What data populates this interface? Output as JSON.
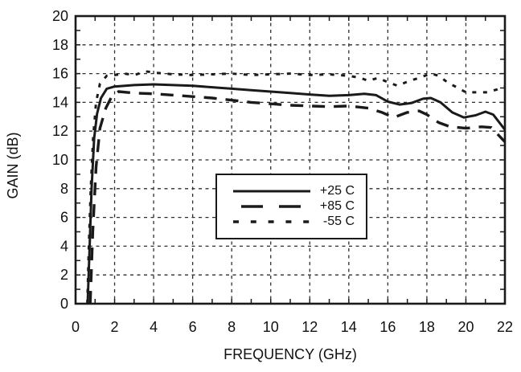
{
  "figure": {
    "background": "#ffffff",
    "ink_color": "#1a1a1a",
    "grid_color": "#2e2e2e"
  },
  "chart_data": {
    "type": "line",
    "title": "",
    "xlabel": "FREQUENCY (GHz)",
    "ylabel": "GAIN (dB)",
    "xlim": [
      0,
      22
    ],
    "ylim": [
      0,
      20
    ],
    "x_ticks": [
      0,
      2,
      4,
      6,
      8,
      10,
      12,
      14,
      16,
      18,
      20,
      22
    ],
    "y_ticks": [
      0,
      2,
      4,
      6,
      8,
      10,
      12,
      14,
      16,
      18,
      20
    ],
    "minor_tick_step": 1,
    "grid": {
      "style": "dashed",
      "x_lines": [
        2,
        4,
        6,
        8,
        10,
        12,
        14,
        16,
        18,
        20
      ],
      "y_lines": [
        2,
        4,
        6,
        8,
        10,
        12,
        14,
        16,
        18
      ]
    },
    "legend_position": "inside-bottom-center",
    "series": [
      {
        "name": "+25 C",
        "style": "solid",
        "points": [
          [
            0.62,
            0
          ],
          [
            0.72,
            4
          ],
          [
            0.82,
            8
          ],
          [
            0.95,
            11.5
          ],
          [
            1.1,
            13.2
          ],
          [
            1.3,
            14.3
          ],
          [
            1.6,
            14.95
          ],
          [
            2,
            15.1
          ],
          [
            3,
            15.2
          ],
          [
            4,
            15.25
          ],
          [
            5,
            15.2
          ],
          [
            6,
            15.15
          ],
          [
            7,
            15.05
          ],
          [
            8,
            14.95
          ],
          [
            9,
            14.85
          ],
          [
            10,
            14.75
          ],
          [
            11,
            14.65
          ],
          [
            12,
            14.55
          ],
          [
            13,
            14.45
          ],
          [
            14,
            14.5
          ],
          [
            14.8,
            14.6
          ],
          [
            15.4,
            14.5
          ],
          [
            16,
            14.05
          ],
          [
            16.6,
            13.85
          ],
          [
            17.2,
            13.95
          ],
          [
            17.8,
            14.25
          ],
          [
            18.2,
            14.3
          ],
          [
            18.7,
            14.0
          ],
          [
            19.3,
            13.3
          ],
          [
            19.9,
            12.95
          ],
          [
            20.5,
            13.1
          ],
          [
            21,
            13.35
          ],
          [
            21.4,
            13.15
          ],
          [
            22,
            12.1
          ]
        ]
      },
      {
        "name": "+85 C",
        "style": "long-dash",
        "points": [
          [
            0.75,
            0
          ],
          [
            0.88,
            5
          ],
          [
            1.05,
            9.5
          ],
          [
            1.25,
            12.2
          ],
          [
            1.55,
            13.6
          ],
          [
            1.85,
            14.4
          ],
          [
            2.2,
            14.75
          ],
          [
            3,
            14.65
          ],
          [
            4,
            14.6
          ],
          [
            5,
            14.5
          ],
          [
            6,
            14.4
          ],
          [
            7,
            14.3
          ],
          [
            8,
            14.15
          ],
          [
            9,
            14.0
          ],
          [
            10,
            13.9
          ],
          [
            11,
            13.8
          ],
          [
            12,
            13.75
          ],
          [
            13,
            13.7
          ],
          [
            14,
            13.75
          ],
          [
            15,
            13.6
          ],
          [
            15.7,
            13.3
          ],
          [
            16.3,
            12.95
          ],
          [
            17,
            13.3
          ],
          [
            17.6,
            13.4
          ],
          [
            18,
            13.15
          ],
          [
            18.6,
            12.6
          ],
          [
            19.2,
            12.3
          ],
          [
            20,
            12.2
          ],
          [
            20.8,
            12.3
          ],
          [
            21.3,
            12.25
          ],
          [
            22,
            11.25
          ]
        ]
      },
      {
        "name": "-55 C",
        "style": "dotted",
        "points": [
          [
            0.6,
            0
          ],
          [
            0.68,
            4
          ],
          [
            0.78,
            8
          ],
          [
            0.9,
            11.5
          ],
          [
            1.05,
            14.0
          ],
          [
            1.25,
            15.3
          ],
          [
            1.6,
            15.85
          ],
          [
            2,
            15.9
          ],
          [
            2.5,
            16.0
          ],
          [
            3,
            15.9
          ],
          [
            3.6,
            16.15
          ],
          [
            4.2,
            16.05
          ],
          [
            5,
            15.95
          ],
          [
            6,
            15.9
          ],
          [
            7,
            15.95
          ],
          [
            8,
            16.0
          ],
          [
            9,
            15.9
          ],
          [
            10,
            15.95
          ],
          [
            11,
            16.0
          ],
          [
            12,
            15.9
          ],
          [
            13,
            15.95
          ],
          [
            14,
            15.85
          ],
          [
            14.6,
            15.7
          ],
          [
            15,
            15.5
          ],
          [
            15.5,
            15.7
          ],
          [
            16,
            15.4
          ],
          [
            16.5,
            15.15
          ],
          [
            17.1,
            15.5
          ],
          [
            17.6,
            15.7
          ],
          [
            18.2,
            16.0
          ],
          [
            18.6,
            15.85
          ],
          [
            19.1,
            15.35
          ],
          [
            19.6,
            15.0
          ],
          [
            20,
            14.7
          ],
          [
            20.6,
            14.7
          ],
          [
            21.1,
            14.7
          ],
          [
            21.6,
            14.9
          ],
          [
            22,
            15.1
          ]
        ]
      }
    ]
  },
  "legend": {
    "entries": [
      {
        "label": "+25 C",
        "style": "solid"
      },
      {
        "label": "+85 C",
        "style": "long-dash"
      },
      {
        "label": "-55 C",
        "style": "dotted"
      }
    ]
  }
}
